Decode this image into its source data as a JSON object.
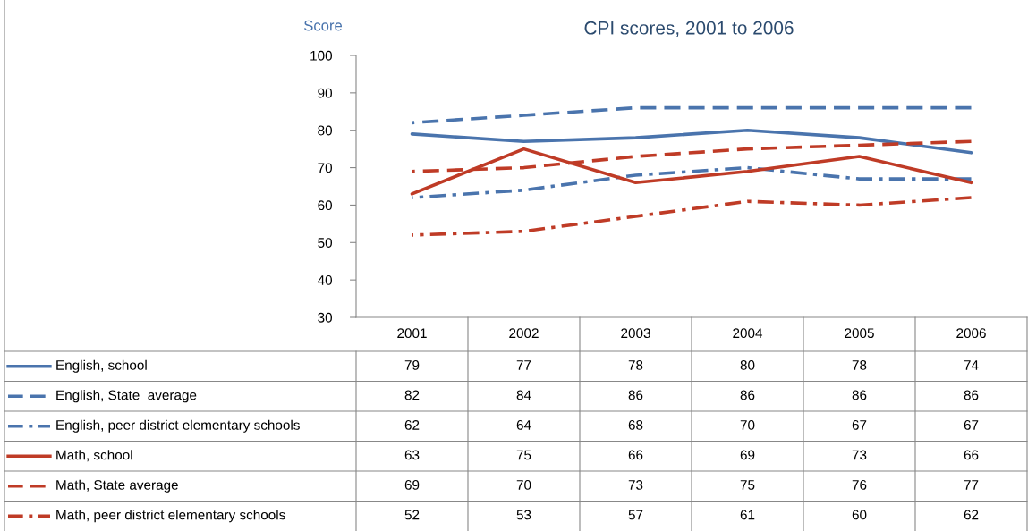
{
  "chart_data": {
    "type": "line",
    "title": "CPI scores, 2001 to 2006",
    "ylabel": "Score",
    "categories": [
      "2001",
      "2002",
      "2003",
      "2004",
      "2005",
      "2006"
    ],
    "ylim": [
      30,
      100
    ],
    "yticks": [
      30,
      40,
      50,
      60,
      70,
      80,
      90,
      100
    ],
    "grid": false,
    "data_labels": true,
    "legend": "bottom left",
    "series": [
      {
        "name": "English, school",
        "color": "#4a74ad",
        "line_style": "solid",
        "values": [
          79,
          77,
          78,
          80,
          78,
          74
        ]
      },
      {
        "name": "English, State  average",
        "color": "#4a74ad",
        "line_style": "dashed",
        "values": [
          82,
          84,
          86,
          86,
          86,
          86
        ]
      },
      {
        "name": "English, peer district elementary schools",
        "color": "#4a74ad",
        "line_style": "dashdot",
        "values": [
          62,
          64,
          68,
          70,
          67,
          67
        ]
      },
      {
        "name": "Math, school",
        "color": "#bf3b26",
        "line_style": "solid",
        "values": [
          63,
          75,
          66,
          69,
          73,
          66
        ]
      },
      {
        "name": "Math, State average",
        "color": "#bf3b26",
        "line_style": "dashed",
        "values": [
          69,
          70,
          73,
          75,
          76,
          77
        ]
      },
      {
        "name": "Math, peer district elementary schools",
        "color": "#bf3b26",
        "line_style": "dashdot",
        "values": [
          52,
          53,
          57,
          61,
          60,
          62
        ]
      }
    ]
  }
}
